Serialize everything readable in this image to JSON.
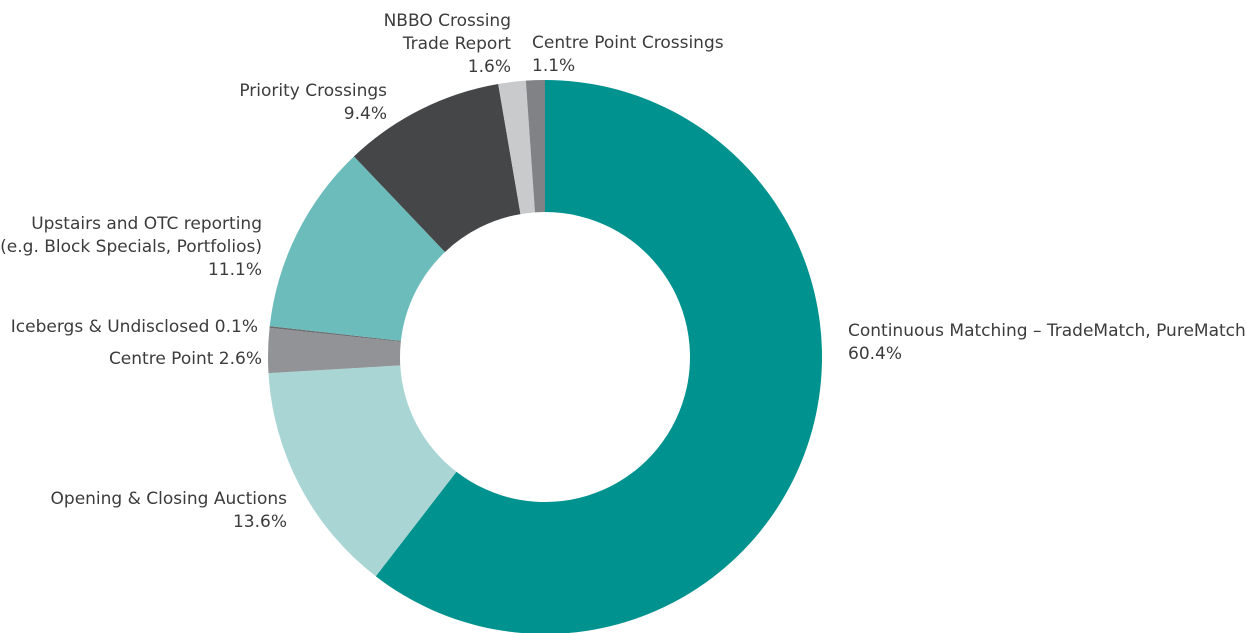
{
  "chart_data": {
    "type": "pie",
    "style": "donut",
    "slices": [
      {
        "name": "Continuous Matching – TradeMatch, PureMatch",
        "value": 60.4,
        "value_label": "60.4%",
        "color": "#00928f",
        "label_lines": [
          "Continuous Matching – TradeMatch, PureMatch",
          "60.4%"
        ]
      },
      {
        "name": "Opening & Closing Auctions",
        "value": 13.6,
        "value_label": "13.6%",
        "color": "#a9d5d5",
        "label_lines": [
          "Opening & Closing Auctions",
          "13.6%"
        ]
      },
      {
        "name": "Centre Point",
        "value": 2.6,
        "value_label": "2.6%",
        "color": "#919396",
        "label_lines": [
          "Centre Point  2.6%"
        ]
      },
      {
        "name": "Icebergs & Undisclosed",
        "value": 0.1,
        "value_label": "0.1%",
        "color": "#6a6c6f",
        "label_lines": [
          "Icebergs & Undisclosed  0.1%"
        ]
      },
      {
        "name": "Upstairs and OTC reporting (e.g. Block Specials, Portfolios)",
        "value": 11.1,
        "value_label": "11.1%",
        "color": "#6dbcbc",
        "label_lines": [
          "Upstairs and OTC reporting",
          "(e.g. Block Specials, Portfolios)",
          "11.1%"
        ]
      },
      {
        "name": "Priority Crossings",
        "value": 9.4,
        "value_label": "9.4%",
        "color": "#444648",
        "label_lines": [
          "Priority Crossings",
          "9.4%"
        ]
      },
      {
        "name": "NBBO Crossing Trade Report",
        "value": 1.6,
        "value_label": "1.6%",
        "color": "#c9cacc",
        "label_lines": [
          "NBBO Crossing",
          "Trade Report",
          "1.6%"
        ]
      },
      {
        "name": "Centre Point Crossings",
        "value": 1.1,
        "value_label": "1.1%",
        "color": "#808285",
        "label_lines": [
          "Centre Point Crossings",
          "1.1%"
        ]
      }
    ]
  }
}
